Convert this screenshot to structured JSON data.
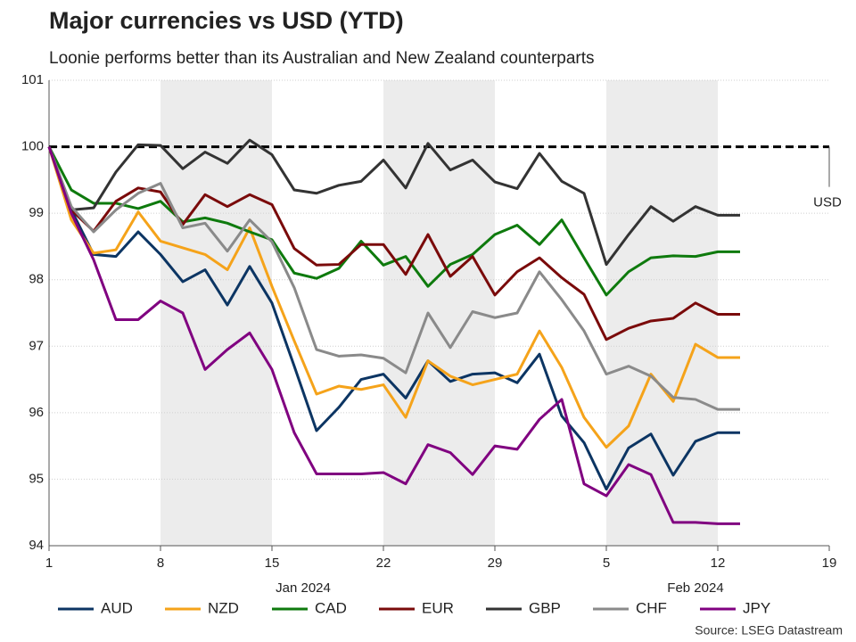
{
  "chart_data": {
    "type": "line",
    "title": "Major currencies vs USD (YTD)",
    "subtitle": "Loonie performs better than its Australian and New Zealand counterparts",
    "source": "Source: LSEG Datastream",
    "x_month_labels": [
      "Jan 2024",
      "Feb 2024"
    ],
    "x": [
      "2024-01-01",
      "2024-01-02",
      "2024-01-03",
      "2024-01-04",
      "2024-01-05",
      "2024-01-08",
      "2024-01-09",
      "2024-01-10",
      "2024-01-11",
      "2024-01-12",
      "2024-01-15",
      "2024-01-16",
      "2024-01-17",
      "2024-01-18",
      "2024-01-19",
      "2024-01-22",
      "2024-01-23",
      "2024-01-24",
      "2024-01-25",
      "2024-01-26",
      "2024-01-29",
      "2024-01-30",
      "2024-01-31",
      "2024-02-01",
      "2024-02-02",
      "2024-02-05",
      "2024-02-06",
      "2024-02-07",
      "2024-02-08",
      "2024-02-09",
      "2024-02-12",
      "2024-02-13"
    ],
    "xlim": [
      "2024-01-01",
      "2024-02-19"
    ],
    "xticks": [
      {
        "value": "2024-01-01",
        "label": "1"
      },
      {
        "value": "2024-01-08",
        "label": "8"
      },
      {
        "value": "2024-01-15",
        "label": "15"
      },
      {
        "value": "2024-01-22",
        "label": "22"
      },
      {
        "value": "2024-01-29",
        "label": "29"
      },
      {
        "value": "2024-02-05",
        "label": "5"
      },
      {
        "value": "2024-02-12",
        "label": "12"
      },
      {
        "value": "2024-02-19",
        "label": "19"
      }
    ],
    "ylim": [
      94,
      101
    ],
    "yticks": [
      94,
      95,
      96,
      97,
      98,
      99,
      100,
      101
    ],
    "grid": true,
    "reference": {
      "value": 100,
      "label": "USD"
    },
    "series": [
      {
        "name": "AUD",
        "color": "#0c3563",
        "values": [
          100,
          99.05,
          98.38,
          98.35,
          98.72,
          98.38,
          97.97,
          98.15,
          97.62,
          98.2,
          97.65,
          96.7,
          95.73,
          96.08,
          96.5,
          96.58,
          96.22,
          96.78,
          96.47,
          96.58,
          96.6,
          96.45,
          96.88,
          95.95,
          95.55,
          94.85,
          95.47,
          95.68,
          95.06,
          95.57,
          95.7,
          95.7
        ]
      },
      {
        "name": "NZD",
        "color": "#f5a31a",
        "values": [
          100,
          98.9,
          98.4,
          98.45,
          99.02,
          98.58,
          98.48,
          98.38,
          98.15,
          98.78,
          97.9,
          97.08,
          96.28,
          96.4,
          96.35,
          96.42,
          95.93,
          96.78,
          96.55,
          96.42,
          96.5,
          96.58,
          97.23,
          96.68,
          95.93,
          95.48,
          95.8,
          96.58,
          96.17,
          97.03,
          96.83,
          96.83
        ]
      },
      {
        "name": "CAD",
        "color": "#0e7a0d",
        "values": [
          100,
          99.35,
          99.15,
          99.15,
          99.07,
          99.18,
          98.87,
          98.93,
          98.85,
          98.72,
          98.6,
          98.1,
          98.02,
          98.17,
          98.58,
          98.22,
          98.35,
          97.9,
          98.23,
          98.38,
          98.68,
          98.82,
          98.53,
          98.9,
          98.33,
          97.77,
          98.12,
          98.33,
          98.36,
          98.35,
          98.42,
          98.42
        ]
      },
      {
        "name": "EUR",
        "color": "#7a0a0a",
        "values": [
          100,
          99.05,
          98.73,
          99.18,
          99.38,
          99.32,
          98.83,
          99.28,
          99.1,
          99.28,
          99.13,
          98.47,
          98.22,
          98.23,
          98.53,
          98.53,
          98.08,
          98.68,
          98.05,
          98.35,
          97.77,
          98.12,
          98.33,
          98.03,
          97.78,
          97.1,
          97.27,
          97.38,
          97.42,
          97.65,
          97.48,
          97.48
        ]
      },
      {
        "name": "GBP",
        "color": "#333333",
        "values": [
          100,
          99.05,
          99.08,
          99.62,
          100.03,
          100.02,
          99.67,
          99.92,
          99.75,
          100.1,
          99.88,
          99.35,
          99.3,
          99.42,
          99.48,
          99.8,
          99.38,
          100.05,
          99.65,
          99.8,
          99.47,
          99.37,
          99.9,
          99.48,
          99.3,
          98.23,
          98.68,
          99.1,
          98.88,
          99.1,
          98.97,
          98.97
        ]
      },
      {
        "name": "CHF",
        "color": "#8a8a8a",
        "values": [
          100,
          99.1,
          98.72,
          99.05,
          99.3,
          99.45,
          98.78,
          98.85,
          98.43,
          98.9,
          98.57,
          97.88,
          96.95,
          96.85,
          96.87,
          96.82,
          96.6,
          97.5,
          96.98,
          97.52,
          97.43,
          97.5,
          98.12,
          97.7,
          97.23,
          96.58,
          96.7,
          96.55,
          96.23,
          96.2,
          96.05,
          96.05
        ]
      },
      {
        "name": "JPY",
        "color": "#800080",
        "values": [
          100,
          99.0,
          98.3,
          97.4,
          97.4,
          97.68,
          97.5,
          96.65,
          96.95,
          97.2,
          96.65,
          95.7,
          95.08,
          95.08,
          95.08,
          95.1,
          94.93,
          95.52,
          95.4,
          95.07,
          95.5,
          95.45,
          95.9,
          96.2,
          94.93,
          94.75,
          95.22,
          95.07,
          94.35,
          94.35,
          94.33,
          94.33
        ]
      }
    ]
  }
}
